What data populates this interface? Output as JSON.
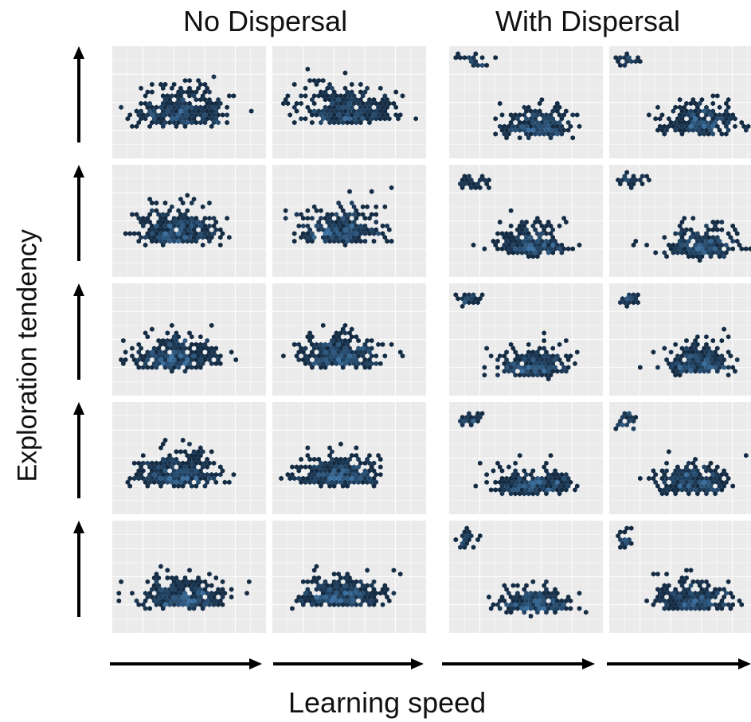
{
  "titles": {
    "left": "No Dispersal",
    "right": "With Dispersal"
  },
  "axes": {
    "xlabel": "Learning speed",
    "ylabel": "Exploration tendency"
  },
  "colors": {
    "panel_bg": "#ebebeb",
    "grid": "#ffffff",
    "hex_dark": "#132b43",
    "hex_light": "#3a6f9f",
    "arrow": "#000000"
  },
  "chart_data": {
    "type": "heatmap",
    "title": "",
    "xlabel": "Learning speed",
    "ylabel": "Exploration tendency",
    "layout": {
      "rows": 5,
      "columns": 4,
      "column_groups": [
        "No Dispersal",
        "No Dispersal",
        "With Dispersal",
        "With Dispersal"
      ]
    },
    "xlim": [
      0,
      1
    ],
    "ylim": [
      0,
      1
    ],
    "grid": true,
    "panels": [
      {
        "row": 0,
        "col": 0,
        "clusters": [
          {
            "cx": 0.45,
            "cy": 0.28,
            "sx": 0.17,
            "sy": 0.2,
            "n": 300
          }
        ]
      },
      {
        "row": 0,
        "col": 1,
        "clusters": [
          {
            "cx": 0.48,
            "cy": 0.3,
            "sx": 0.17,
            "sy": 0.2,
            "n": 300
          }
        ]
      },
      {
        "row": 0,
        "col": 2,
        "clusters": [
          {
            "cx": 0.58,
            "cy": 0.18,
            "sx": 0.13,
            "sy": 0.14,
            "n": 230
          },
          {
            "cx": 0.14,
            "cy": 0.88,
            "sx": 0.06,
            "sy": 0.07,
            "n": 30
          }
        ]
      },
      {
        "row": 0,
        "col": 3,
        "clusters": [
          {
            "cx": 0.6,
            "cy": 0.2,
            "sx": 0.13,
            "sy": 0.15,
            "n": 230
          },
          {
            "cx": 0.1,
            "cy": 0.88,
            "sx": 0.04,
            "sy": 0.07,
            "n": 30
          }
        ]
      },
      {
        "row": 1,
        "col": 0,
        "clusters": [
          {
            "cx": 0.42,
            "cy": 0.28,
            "sx": 0.15,
            "sy": 0.18,
            "n": 300
          }
        ]
      },
      {
        "row": 1,
        "col": 1,
        "clusters": [
          {
            "cx": 0.45,
            "cy": 0.3,
            "sx": 0.15,
            "sy": 0.18,
            "n": 300
          }
        ]
      },
      {
        "row": 1,
        "col": 2,
        "clusters": [
          {
            "cx": 0.55,
            "cy": 0.18,
            "sx": 0.12,
            "sy": 0.14,
            "n": 230
          },
          {
            "cx": 0.12,
            "cy": 0.82,
            "sx": 0.06,
            "sy": 0.07,
            "n": 30
          }
        ]
      },
      {
        "row": 1,
        "col": 3,
        "clusters": [
          {
            "cx": 0.6,
            "cy": 0.16,
            "sx": 0.13,
            "sy": 0.13,
            "n": 230
          },
          {
            "cx": 0.14,
            "cy": 0.86,
            "sx": 0.07,
            "sy": 0.06,
            "n": 30
          }
        ]
      },
      {
        "row": 2,
        "col": 0,
        "clusters": [
          {
            "cx": 0.42,
            "cy": 0.22,
            "sx": 0.15,
            "sy": 0.15,
            "n": 300
          }
        ]
      },
      {
        "row": 2,
        "col": 1,
        "clusters": [
          {
            "cx": 0.42,
            "cy": 0.24,
            "sx": 0.14,
            "sy": 0.16,
            "n": 300
          }
        ]
      },
      {
        "row": 2,
        "col": 2,
        "clusters": [
          {
            "cx": 0.55,
            "cy": 0.16,
            "sx": 0.12,
            "sy": 0.13,
            "n": 230
          },
          {
            "cx": 0.1,
            "cy": 0.86,
            "sx": 0.05,
            "sy": 0.06,
            "n": 30
          }
        ]
      },
      {
        "row": 2,
        "col": 3,
        "clusters": [
          {
            "cx": 0.58,
            "cy": 0.18,
            "sx": 0.12,
            "sy": 0.13,
            "n": 230
          },
          {
            "cx": 0.1,
            "cy": 0.86,
            "sx": 0.04,
            "sy": 0.06,
            "n": 30
          }
        ]
      },
      {
        "row": 3,
        "col": 0,
        "clusters": [
          {
            "cx": 0.42,
            "cy": 0.24,
            "sx": 0.14,
            "sy": 0.15,
            "n": 300
          }
        ]
      },
      {
        "row": 3,
        "col": 1,
        "clusters": [
          {
            "cx": 0.42,
            "cy": 0.24,
            "sx": 0.14,
            "sy": 0.15,
            "n": 300
          }
        ]
      },
      {
        "row": 3,
        "col": 2,
        "clusters": [
          {
            "cx": 0.55,
            "cy": 0.16,
            "sx": 0.14,
            "sy": 0.12,
            "n": 230
          },
          {
            "cx": 0.1,
            "cy": 0.82,
            "sx": 0.05,
            "sy": 0.09,
            "n": 35
          }
        ]
      },
      {
        "row": 3,
        "col": 3,
        "clusters": [
          {
            "cx": 0.55,
            "cy": 0.16,
            "sx": 0.13,
            "sy": 0.14,
            "n": 230
          },
          {
            "cx": 0.09,
            "cy": 0.8,
            "sx": 0.04,
            "sy": 0.09,
            "n": 35
          }
        ]
      },
      {
        "row": 4,
        "col": 0,
        "clusters": [
          {
            "cx": 0.45,
            "cy": 0.2,
            "sx": 0.15,
            "sy": 0.13,
            "n": 300
          }
        ]
      },
      {
        "row": 4,
        "col": 1,
        "clusters": [
          {
            "cx": 0.45,
            "cy": 0.22,
            "sx": 0.15,
            "sy": 0.14,
            "n": 300
          }
        ]
      },
      {
        "row": 4,
        "col": 2,
        "clusters": [
          {
            "cx": 0.55,
            "cy": 0.16,
            "sx": 0.12,
            "sy": 0.12,
            "n": 230
          },
          {
            "cx": 0.08,
            "cy": 0.8,
            "sx": 0.04,
            "sy": 0.1,
            "n": 30
          }
        ]
      },
      {
        "row": 4,
        "col": 3,
        "clusters": [
          {
            "cx": 0.55,
            "cy": 0.18,
            "sx": 0.13,
            "sy": 0.13,
            "n": 230
          },
          {
            "cx": 0.08,
            "cy": 0.8,
            "sx": 0.04,
            "sy": 0.1,
            "n": 30
          }
        ]
      }
    ]
  }
}
